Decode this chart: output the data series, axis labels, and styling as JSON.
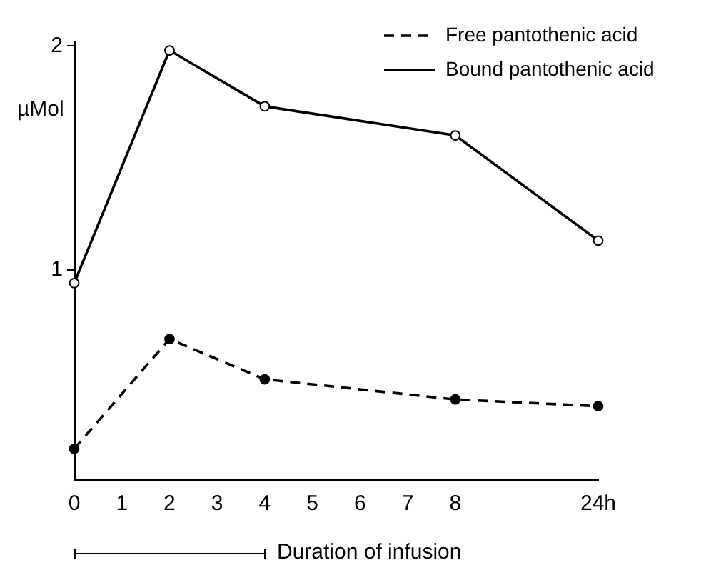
{
  "chart_data": {
    "type": "line",
    "xlabel": "Duration of infusion",
    "ylabel": "µMol",
    "categories": [
      "0",
      "1",
      "2",
      "3",
      "4",
      "5",
      "6",
      "7",
      "8",
      null,
      null,
      "24h"
    ],
    "series": [
      {
        "name": "Free pantothenic acid",
        "color": "#000000",
        "line_style": "dashed",
        "values": [
          0.2,
          null,
          0.69,
          null,
          0.51,
          null,
          null,
          null,
          0.42,
          null,
          null,
          0.39
        ]
      },
      {
        "name": "Bound pantothenic acid",
        "color": "#000000",
        "line_style": "solid",
        "values": [
          0.94,
          null,
          1.98,
          null,
          1.73,
          null,
          null,
          null,
          1.6,
          null,
          null,
          1.13
        ]
      }
    ],
    "ylim": [
      0.06,
      2.02
    ],
    "yticks": [
      1,
      2
    ],
    "grid": false,
    "legend": "top right",
    "marker": "circle"
  }
}
